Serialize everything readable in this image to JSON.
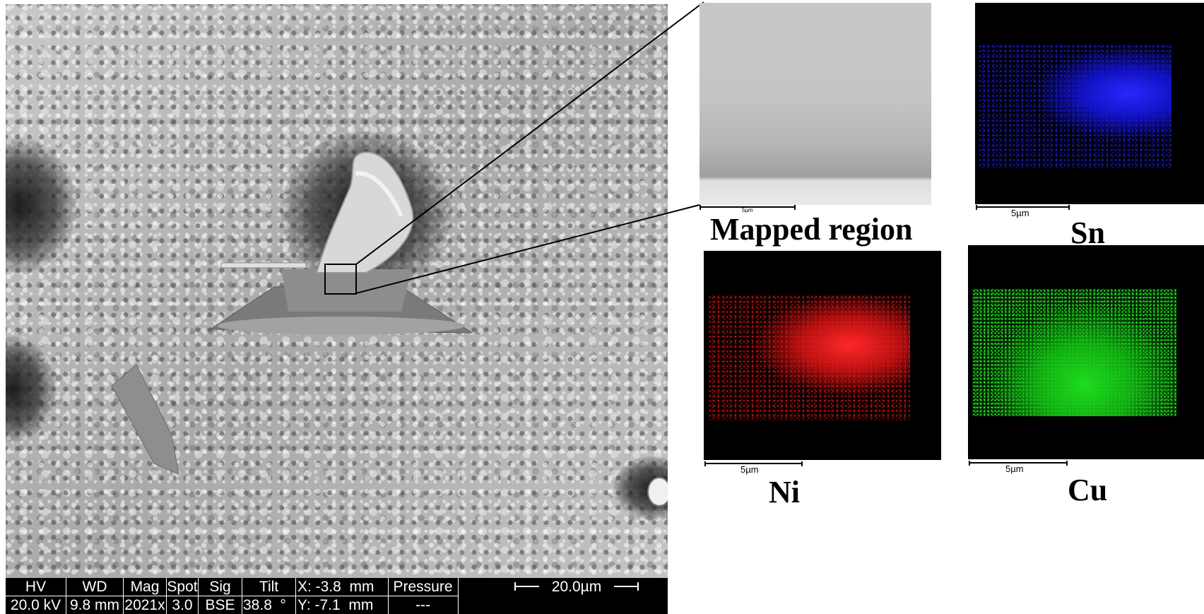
{
  "sem_info": {
    "headers": {
      "hv": "HV",
      "wd": "WD",
      "mag": "Mag",
      "spot": "Spot",
      "sig": "Sig",
      "tilt": "Tilt",
      "x": "X: -3.8  mm",
      "pressure": "Pressure"
    },
    "values": {
      "hv": "20.0 kV",
      "wd": "9.8 mm",
      "mag": "2021x",
      "spot": "3.0",
      "sig": "BSE",
      "tilt": "38.8  °",
      "y": "Y: -7.1  mm",
      "pressure": "---"
    },
    "scalebar_label": "20.0µm"
  },
  "panels": {
    "mapped": {
      "caption": "Mapped region",
      "scale_label": "5µm"
    },
    "sn": {
      "caption": "Sn",
      "scale_label": "5µm",
      "color": "#1a1aff"
    },
    "ni": {
      "caption": "Ni",
      "scale_label": "5µm",
      "color": "#ff2020"
    },
    "cu": {
      "caption": "Cu",
      "scale_label": "5µm",
      "color": "#22dd22"
    }
  }
}
